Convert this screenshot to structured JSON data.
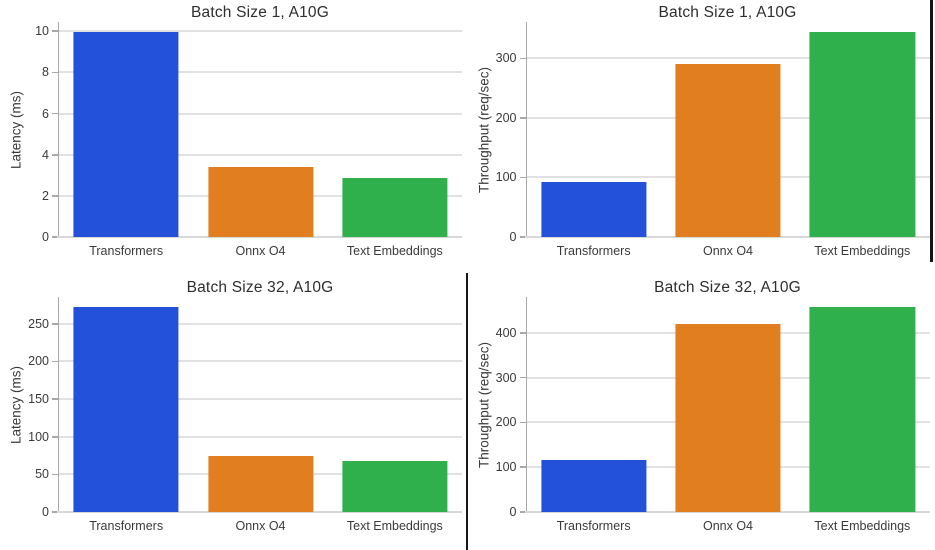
{
  "page": {
    "background": "#ffffff",
    "description_title": "Model serving benchmark grid"
  },
  "palette": {
    "bar_blue": "#2451d9",
    "bar_orange": "#e07e20",
    "bar_green": "#2fb04d",
    "gridline": "#e1e1e1",
    "axis_spine": "#a9a9a9",
    "baseline": "#d8d8d8",
    "title_text": "#2e2e2e",
    "tick_text": "#3a3a3a",
    "table_border": "#161616"
  },
  "chart_data": [
    {
      "id": "batch1-latency",
      "type": "bar",
      "title": "Batch Size 1, A10G",
      "ylabel": "Latency (ms)",
      "xlabel": "",
      "categories": [
        "Transformers",
        "Onnx O4",
        "Text Embeddings"
      ],
      "values": [
        9.95,
        3.4,
        2.85
      ],
      "yticks": [
        0,
        2,
        4,
        6,
        8,
        10
      ],
      "ylim": [
        0,
        10.45
      ],
      "grid": true,
      "legend": false,
      "bar_colors": [
        "#2451d9",
        "#e07e20",
        "#2fb04d"
      ]
    },
    {
      "id": "batch1-throughput",
      "type": "bar",
      "title": "Batch Size 1, A10G",
      "ylabel": "Throughput (req/sec)",
      "xlabel": "",
      "categories": [
        "Transformers",
        "Onnx O4",
        "Text Embeddings"
      ],
      "values": [
        93,
        290,
        344
      ],
      "yticks": [
        0,
        100,
        200,
        300
      ],
      "ylim": [
        0,
        361
      ],
      "grid": true,
      "legend": false,
      "bar_colors": [
        "#2451d9",
        "#e07e20",
        "#2fb04d"
      ]
    },
    {
      "id": "batch32-latency",
      "type": "bar",
      "title": "Batch Size 32, A10G",
      "ylabel": "Latency (ms)",
      "xlabel": "",
      "categories": [
        "Transformers",
        "Onnx O4",
        "Text Embeddings"
      ],
      "values": [
        272,
        75,
        68
      ],
      "yticks": [
        0,
        50,
        100,
        150,
        200,
        250
      ],
      "ylim": [
        0,
        285.6
      ],
      "grid": true,
      "legend": false,
      "bar_colors": [
        "#2451d9",
        "#e07e20",
        "#2fb04d"
      ]
    },
    {
      "id": "batch32-throughput",
      "type": "bar",
      "title": "Batch Size 32, A10G",
      "ylabel": "Throughput (req/sec)",
      "xlabel": "",
      "categories": [
        "Transformers",
        "Onnx O4",
        "Text Embeddings"
      ],
      "values": [
        116,
        420,
        457
      ],
      "yticks": [
        0,
        100,
        200,
        300,
        400
      ],
      "ylim": [
        0,
        480
      ],
      "grid": true,
      "legend": false,
      "bar_colors": [
        "#2451d9",
        "#e07e20",
        "#2fb04d"
      ]
    }
  ]
}
